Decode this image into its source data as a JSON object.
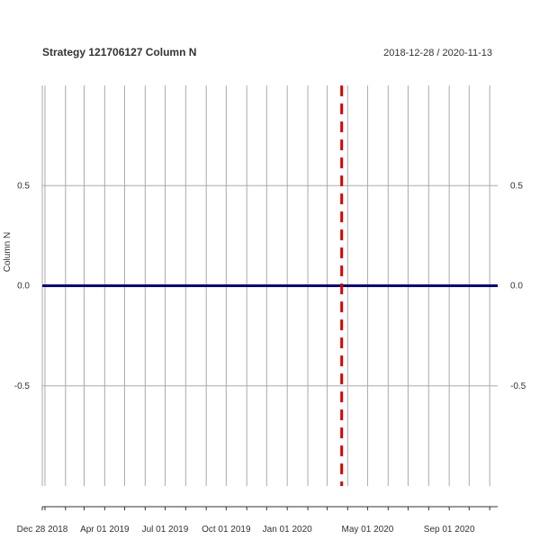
{
  "chart_data": {
    "type": "line",
    "title": "Strategy 121706127 Column N",
    "date_range": "2018-12-28 / 2020-11-13",
    "ylabel": "Column N",
    "xlabel": "",
    "x_start": "2018-12-28",
    "x_end": "2020-11-13",
    "ylim": [
      -1,
      1
    ],
    "y_ticks": [
      {
        "value": -0.5,
        "label": "-0.5"
      },
      {
        "value": 0,
        "label": "0.0"
      },
      {
        "value": 0.5,
        "label": "0.5"
      }
    ],
    "x_tick_labels": [
      {
        "date": "2018-12-28",
        "label": "Dec 28 2018"
      },
      {
        "date": "2019-04-01",
        "label": "Apr 01 2019"
      },
      {
        "date": "2019-07-01",
        "label": "Jul 01 2019"
      },
      {
        "date": "2019-10-01",
        "label": "Oct 01 2019"
      },
      {
        "date": "2020-01-01",
        "label": "Jan 01 2020"
      },
      {
        "date": "2020-05-01",
        "label": "May 01 2020"
      },
      {
        "date": "2020-09-01",
        "label": "Sep 01 2020"
      }
    ],
    "x_gridlines": [
      "2018-12-28",
      "2019-01-01",
      "2019-02-01",
      "2019-03-01",
      "2019-04-01",
      "2019-05-01",
      "2019-06-01",
      "2019-07-01",
      "2019-08-01",
      "2019-09-01",
      "2019-10-01",
      "2019-11-01",
      "2019-12-01",
      "2020-01-01",
      "2020-02-01",
      "2020-03-01",
      "2020-04-01",
      "2020-05-01",
      "2020-06-01",
      "2020-07-01",
      "2020-08-01",
      "2020-09-01",
      "2020-10-01",
      "2020-11-01"
    ],
    "series": [
      {
        "values": [
          {
            "x": "2018-12-28",
            "y": 0
          },
          {
            "x": "2020-11-13",
            "y": 0
          }
        ],
        "color": "#000080"
      }
    ],
    "vertical_marker": {
      "x": "2020-03-23",
      "color": "#dd0000",
      "style": "dashed"
    },
    "grid": true,
    "colors": {
      "grid": "#aaaaaa",
      "axis": "#333333"
    }
  }
}
